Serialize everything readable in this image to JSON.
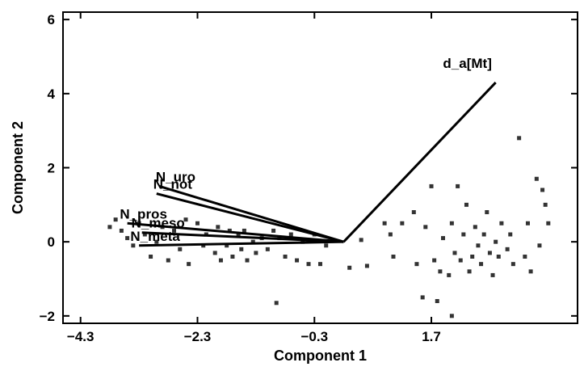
{
  "chart_data": {
    "type": "scatter",
    "xlabel": "Component 1",
    "ylabel": "Component 2",
    "xlim": [
      -4.6,
      4.2
    ],
    "ylim": [
      -2.2,
      6.2
    ],
    "xticks": [
      "-4.3",
      "-2.3",
      "-0.3",
      "1.7"
    ],
    "yticks": [
      "-2",
      "0",
      "2",
      "4",
      "6"
    ],
    "points": [
      [
        -3.8,
        0.4
      ],
      [
        -3.7,
        0.6
      ],
      [
        -3.6,
        0.3
      ],
      [
        -3.5,
        0.1
      ],
      [
        -3.4,
        -0.1
      ],
      [
        -3.3,
        0.5
      ],
      [
        -3.2,
        0.2
      ],
      [
        -3.1,
        -0.4
      ],
      [
        -3.0,
        0.0
      ],
      [
        -2.9,
        0.4
      ],
      [
        -2.8,
        -0.5
      ],
      [
        -2.7,
        0.3
      ],
      [
        -2.6,
        -0.2
      ],
      [
        -2.5,
        0.6
      ],
      [
        -2.45,
        -0.6
      ],
      [
        -2.3,
        0.5
      ],
      [
        -2.2,
        -0.1
      ],
      [
        -2.15,
        0.2
      ],
      [
        -2.0,
        -0.3
      ],
      [
        -1.95,
        0.4
      ],
      [
        -1.9,
        -0.5
      ],
      [
        -1.8,
        -0.1
      ],
      [
        -1.75,
        0.3
      ],
      [
        -1.7,
        -0.4
      ],
      [
        -1.6,
        0.2
      ],
      [
        -1.55,
        -0.2
      ],
      [
        -1.5,
        0.3
      ],
      [
        -1.45,
        -0.5
      ],
      [
        -1.35,
        0.0
      ],
      [
        -1.3,
        -0.3
      ],
      [
        -1.2,
        0.1
      ],
      [
        -1.1,
        -0.2
      ],
      [
        -1.0,
        0.3
      ],
      [
        -0.9,
        0.1
      ],
      [
        -0.8,
        -0.4
      ],
      [
        -0.7,
        0.2
      ],
      [
        -0.6,
        -0.5
      ],
      [
        -0.5,
        0.0
      ],
      [
        -0.4,
        -0.6
      ],
      [
        -0.3,
        0.2
      ],
      [
        -0.2,
        -0.6
      ],
      [
        -0.1,
        -0.1
      ],
      [
        0.3,
        -0.7
      ],
      [
        0.5,
        0.05
      ],
      [
        0.6,
        -0.65
      ],
      [
        0.9,
        0.5
      ],
      [
        1.0,
        0.2
      ],
      [
        1.05,
        -0.4
      ],
      [
        1.2,
        0.5
      ],
      [
        1.4,
        0.8
      ],
      [
        1.45,
        -0.6
      ],
      [
        1.55,
        -1.5
      ],
      [
        1.6,
        0.4
      ],
      [
        1.7,
        1.5
      ],
      [
        1.75,
        -0.5
      ],
      [
        1.8,
        -1.6
      ],
      [
        1.85,
        -0.8
      ],
      [
        1.9,
        0.1
      ],
      [
        2.0,
        -0.9
      ],
      [
        2.05,
        0.5
      ],
      [
        2.1,
        -0.3
      ],
      [
        2.15,
        1.5
      ],
      [
        2.2,
        -0.5
      ],
      [
        2.25,
        0.2
      ],
      [
        2.3,
        1.0
      ],
      [
        2.35,
        -0.8
      ],
      [
        2.4,
        -0.4
      ],
      [
        2.45,
        0.4
      ],
      [
        2.5,
        -0.1
      ],
      [
        2.55,
        -0.6
      ],
      [
        2.6,
        0.2
      ],
      [
        2.65,
        0.8
      ],
      [
        2.7,
        -0.3
      ],
      [
        2.75,
        -0.9
      ],
      [
        2.8,
        0.0
      ],
      [
        2.85,
        -0.4
      ],
      [
        2.9,
        0.5
      ],
      [
        3.0,
        -0.2
      ],
      [
        3.05,
        0.2
      ],
      [
        3.1,
        -0.6
      ],
      [
        3.2,
        2.8
      ],
      [
        3.3,
        -0.4
      ],
      [
        3.35,
        0.5
      ],
      [
        3.4,
        -0.8
      ],
      [
        3.5,
        1.7
      ],
      [
        3.55,
        -0.1
      ],
      [
        3.6,
        1.4
      ],
      [
        3.65,
        1.0
      ],
      [
        3.7,
        0.5
      ],
      [
        2.05,
        -2.0
      ],
      [
        -0.95,
        -1.65
      ]
    ],
    "vectors": [
      {
        "label": "d_a[Mt]",
        "x": 2.8,
        "y": 4.3
      },
      {
        "label": "N_uro",
        "x": -2.95,
        "y": 1.5
      },
      {
        "label": "N_not",
        "x": -3.0,
        "y": 1.3
      },
      {
        "label": "N_pros",
        "x": -3.5,
        "y": 0.5
      },
      {
        "label": "N_meso",
        "x": -3.25,
        "y": 0.25
      },
      {
        "label": "N_meta",
        "x": -3.3,
        "y": -0.1
      }
    ],
    "vector_origin": [
      0.2,
      0.0
    ],
    "grid": false
  }
}
